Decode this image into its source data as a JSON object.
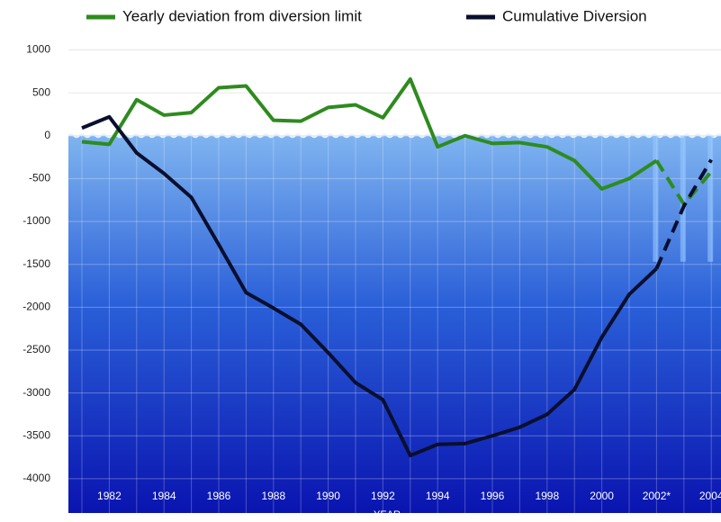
{
  "chart_data": {
    "type": "line",
    "categories": [
      null,
      "1982",
      null,
      "1984",
      null,
      "1986",
      null,
      "1988",
      null,
      "1990",
      null,
      "1992",
      null,
      "1994",
      null,
      "1996",
      null,
      "1998",
      null,
      "2000",
      null,
      "2002*",
      null,
      "2004"
    ],
    "xlabel": "YEAR",
    "series": [
      {
        "name": "Yearly deviation from diversion limit",
        "color": "#2e8b1e",
        "values": [
          -70,
          -100,
          420,
          240,
          270,
          560,
          580,
          180,
          170,
          330,
          360,
          210,
          660,
          -130,
          0,
          -90,
          -80,
          -130,
          -290,
          -620,
          -500,
          -290,
          -800,
          -420
        ]
      },
      {
        "name": "Cumulative Diversion",
        "color": "#0a0f2e",
        "values": [
          90,
          220,
          -200,
          -440,
          -720,
          -1270,
          -1830,
          -2010,
          -2200,
          -2530,
          -2880,
          -3080,
          -3730,
          -3600,
          -3590,
          -3500,
          -3400,
          -3250,
          -2960,
          -2350,
          -1850,
          -1550,
          -820,
          -280
        ]
      }
    ],
    "ylim": [
      -4400,
      1100
    ],
    "yticks": [
      1000,
      500,
      0,
      -500,
      -1000,
      -1500,
      -2000,
      -2500,
      -3000,
      -3500,
      -4000
    ],
    "grid": true
  }
}
